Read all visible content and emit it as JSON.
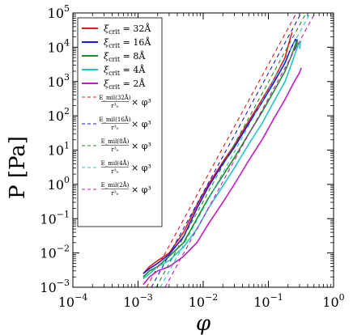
{
  "chart_data": {
    "type": "line",
    "title": "",
    "xlabel": "φ",
    "ylabel": "P [Pa]",
    "xscale": "log",
    "yscale": "log",
    "xlim": [
      0.0001,
      1
    ],
    "ylim": [
      0.001,
      100000
    ],
    "grid": false,
    "legend_position": "top-left",
    "x_ticks": [
      {
        "value": 0.0001,
        "base": "10",
        "exp": "−4"
      },
      {
        "value": 0.001,
        "base": "10",
        "exp": "−3"
      },
      {
        "value": 0.01,
        "base": "10",
        "exp": "−2"
      },
      {
        "value": 0.1,
        "base": "10",
        "exp": "−1"
      },
      {
        "value": 1,
        "base": "10",
        "exp": "0"
      }
    ],
    "y_ticks": [
      {
        "value": 0.001,
        "base": "10",
        "exp": "−3"
      },
      {
        "value": 0.01,
        "base": "10",
        "exp": "−2"
      },
      {
        "value": 0.1,
        "base": "10",
        "exp": "−1"
      },
      {
        "value": 1,
        "base": "10",
        "exp": "0"
      },
      {
        "value": 10,
        "base": "10",
        "exp": "1"
      },
      {
        "value": 100,
        "base": "10",
        "exp": "2"
      },
      {
        "value": 1000,
        "base": "10",
        "exp": "3"
      },
      {
        "value": 10000,
        "base": "10",
        "exp": "4"
      },
      {
        "value": 100000,
        "base": "10",
        "exp": "5"
      }
    ],
    "series": [
      {
        "name": "ξ_crit = 32Å",
        "label_main": "ξ",
        "label_sub": "crit",
        "label_rest": " = 32Å",
        "color": "#e41a1c",
        "style": "solid",
        "points": [
          [
            0.0012,
            0.0025
          ],
          [
            0.0015,
            0.004
          ],
          [
            0.002,
            0.006
          ],
          [
            0.003,
            0.01
          ],
          [
            0.005,
            0.04
          ],
          [
            0.008,
            0.25
          ],
          [
            0.012,
            1.0
          ],
          [
            0.02,
            4.5
          ],
          [
            0.03,
            14
          ],
          [
            0.05,
            70
          ],
          [
            0.08,
            300
          ],
          [
            0.12,
            1100
          ],
          [
            0.18,
            5000
          ],
          [
            0.21,
            15000
          ],
          [
            0.23,
            27000
          ]
        ]
      },
      {
        "name": "ξ_crit = 16Å",
        "label_main": "ξ",
        "label_sub": "crit",
        "label_rest": " = 16Å",
        "color": "#1a1adc",
        "style": "solid",
        "points": [
          [
            0.0012,
            0.0025
          ],
          [
            0.0015,
            0.0035
          ],
          [
            0.002,
            0.005
          ],
          [
            0.003,
            0.009
          ],
          [
            0.005,
            0.03
          ],
          [
            0.008,
            0.2
          ],
          [
            0.012,
            0.85
          ],
          [
            0.02,
            4.0
          ],
          [
            0.03,
            12
          ],
          [
            0.05,
            60
          ],
          [
            0.08,
            250
          ],
          [
            0.12,
            900
          ],
          [
            0.18,
            3500
          ],
          [
            0.22,
            9000
          ],
          [
            0.26,
            17000
          ],
          [
            0.27,
            16000
          ],
          [
            0.25,
            8000
          ]
        ]
      },
      {
        "name": "ξ_crit = 8Å",
        "label_main": "ξ",
        "label_sub": "crit",
        "label_rest": " = 8Å",
        "color": "#228b22",
        "style": "solid",
        "points": [
          [
            0.0012,
            0.002
          ],
          [
            0.0015,
            0.003
          ],
          [
            0.002,
            0.004
          ],
          [
            0.003,
            0.008
          ],
          [
            0.005,
            0.02
          ],
          [
            0.008,
            0.1
          ],
          [
            0.012,
            0.4
          ],
          [
            0.02,
            1.8
          ],
          [
            0.03,
            6
          ],
          [
            0.05,
            30
          ],
          [
            0.08,
            130
          ],
          [
            0.12,
            500
          ],
          [
            0.18,
            2000
          ],
          [
            0.22,
            5000
          ],
          [
            0.26,
            12000
          ],
          [
            0.28,
            17000
          ],
          [
            0.27,
            10000
          ]
        ]
      },
      {
        "name": "ξ_crit = 4Å",
        "label_main": "ξ",
        "label_sub": "crit",
        "label_rest": " = 4Å",
        "color": "#20c4c4",
        "style": "solid",
        "points": [
          [
            0.0012,
            0.0018
          ],
          [
            0.0015,
            0.0025
          ],
          [
            0.002,
            0.004
          ],
          [
            0.003,
            0.006
          ],
          [
            0.005,
            0.015
          ],
          [
            0.008,
            0.05
          ],
          [
            0.012,
            0.2
          ],
          [
            0.02,
            0.9
          ],
          [
            0.03,
            3
          ],
          [
            0.05,
            15
          ],
          [
            0.08,
            60
          ],
          [
            0.12,
            250
          ],
          [
            0.18,
            1000
          ],
          [
            0.22,
            2800
          ],
          [
            0.26,
            7000
          ],
          [
            0.29,
            12000
          ],
          [
            0.31,
            14000
          ],
          [
            0.3,
            9000
          ]
        ]
      },
      {
        "name": "ξ_crit = 2Å",
        "label_main": "ξ",
        "label_sub": "crit",
        "label_rest": " = 2Å",
        "color": "#c41ac4",
        "style": "solid",
        "points": [
          [
            0.0012,
            0.0012
          ],
          [
            0.0015,
            0.002
          ],
          [
            0.002,
            0.003
          ],
          [
            0.003,
            0.004
          ],
          [
            0.005,
            0.008
          ],
          [
            0.008,
            0.02
          ],
          [
            0.012,
            0.07
          ],
          [
            0.02,
            0.3
          ],
          [
            0.03,
            1.0
          ],
          [
            0.05,
            5
          ],
          [
            0.08,
            20
          ],
          [
            0.12,
            80
          ],
          [
            0.18,
            300
          ],
          [
            0.25,
            1000
          ],
          [
            0.3,
            1800
          ],
          [
            0.32,
            2500
          ]
        ]
      },
      {
        "name": "fit 32Å",
        "frac_num": "E_mil(32Å)",
        "frac_den": "r_0^3",
        "rest": " × φ³",
        "color": "#e41a1c",
        "style": "dashed",
        "points": [
          [
            0.00135,
            0.001
          ],
          [
            0.27,
            100000
          ]
        ]
      },
      {
        "name": "fit 16Å",
        "frac_num": "E_mil(16Å)",
        "frac_den": "r_0^3",
        "rest": " × φ³",
        "color": "#1a1adc",
        "style": "dashed",
        "points": [
          [
            0.0016,
            0.001
          ],
          [
            0.32,
            100000
          ]
        ]
      },
      {
        "name": "fit 8Å",
        "frac_num": "E_mil(8Å)",
        "frac_den": "r_0^3",
        "rest": " × φ³",
        "color": "#228b22",
        "style": "dashed",
        "points": [
          [
            0.0019,
            0.001
          ],
          [
            0.38,
            100000
          ]
        ]
      },
      {
        "name": "fit 4Å",
        "frac_num": "E_mil(4Å)",
        "frac_den": "r_0^3",
        "rest": " × φ³",
        "color": "#20c4c4",
        "style": "dashed",
        "points": [
          [
            0.0022,
            0.001
          ],
          [
            0.44,
            100000
          ]
        ]
      },
      {
        "name": "fit 2Å",
        "frac_num": "E_mil(2Å)",
        "frac_den": "r_0^3",
        "rest": " × φ³",
        "color": "#c41ac4",
        "style": "dashed",
        "points": [
          [
            0.0026,
            0.001
          ],
          [
            0.52,
            100000
          ]
        ]
      }
    ],
    "legend": [
      {
        "kind": "solid",
        "color": "#e41a1c",
        "main": "ξ",
        "sub": "crit",
        "rest": " = 32Å"
      },
      {
        "kind": "solid",
        "color": "#1a1adc",
        "main": "ξ",
        "sub": "crit",
        "rest": " = 16Å"
      },
      {
        "kind": "solid",
        "color": "#228b22",
        "main": "ξ",
        "sub": "crit",
        "rest": " = 8Å"
      },
      {
        "kind": "solid",
        "color": "#20c4c4",
        "main": "ξ",
        "sub": "crit",
        "rest": " = 4Å"
      },
      {
        "kind": "solid",
        "color": "#c41ac4",
        "main": "ξ",
        "sub": "crit",
        "rest": " = 2Å"
      },
      {
        "kind": "dashed",
        "color": "#e41a1c",
        "num": "E_mil(32Å)",
        "den": "r³₀",
        "rest": "× φ³"
      },
      {
        "kind": "dashed",
        "color": "#1a1adc",
        "num": "E_mil(16Å)",
        "den": "r³₀",
        "rest": "× φ³"
      },
      {
        "kind": "dashed",
        "color": "#228b22",
        "num": "E_mil(8Å)",
        "den": "r³₀",
        "rest": "× φ³"
      },
      {
        "kind": "dashed",
        "color": "#20c4c4",
        "num": "E_mil(4Å)",
        "den": "r³₀",
        "rest": "× φ³"
      },
      {
        "kind": "dashed",
        "color": "#c41ac4",
        "num": "E_mil(2Å)",
        "den": "r³₀",
        "rest": "× φ³"
      }
    ]
  }
}
